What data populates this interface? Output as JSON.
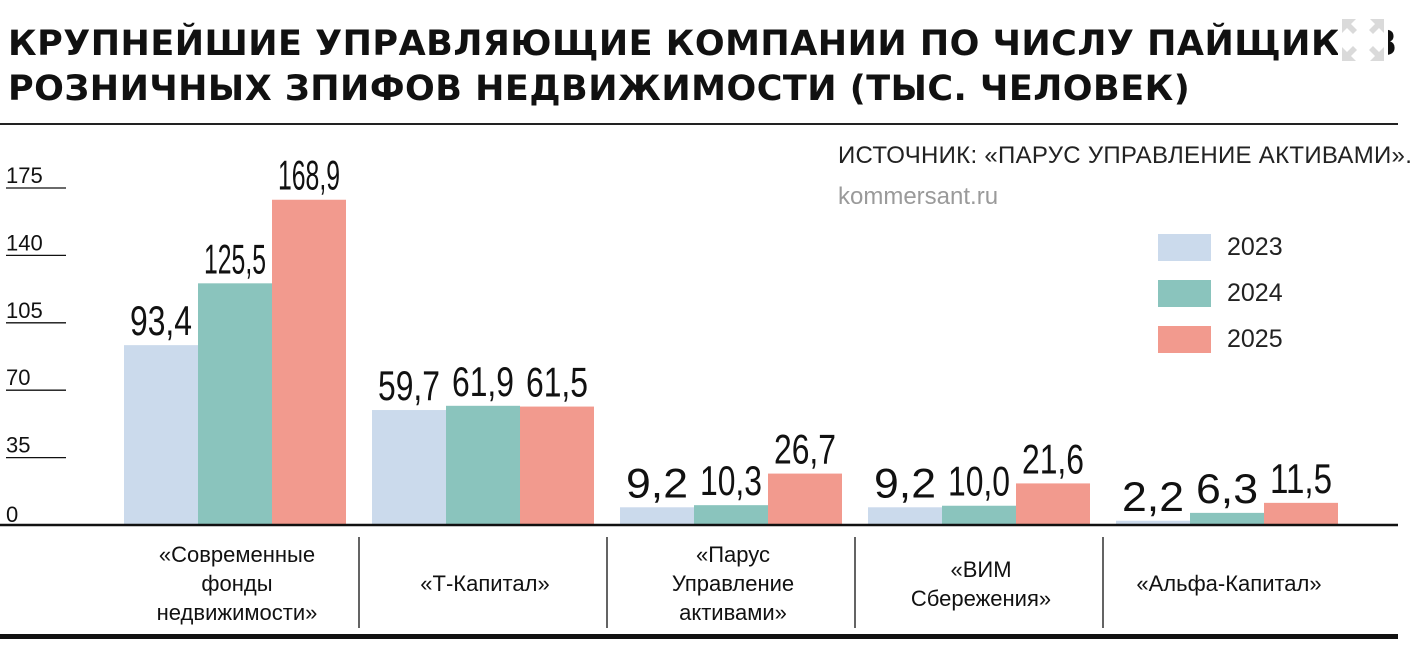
{
  "header": {
    "title_line1": "КРУПНЕЙШИЕ УПРАВЛЯЮЩИЕ КОМПАНИИ ПО ЧИСЛУ ПАЙЩИКОВ",
    "title_line2": "РОЗНИЧНЫХ ЗПИФОВ НЕДВИЖИМОСТИ (ТЫС. ЧЕЛОВЕК)",
    "expand_icon": "expand-arrows-icon"
  },
  "source": "ИСТОЧНИК: «ПАРУС УПРАВЛЕНИЕ АКТИВАМИ».",
  "site": "kommersant.ru",
  "colors": {
    "s2023": "#cbdaec",
    "s2024": "#8ac4bd",
    "s2025": "#f29a8e",
    "text": "#111111",
    "source_gray": "#9a9a9a"
  },
  "chart_data": {
    "type": "bar",
    "title": "КРУПНЕЙШИЕ УПРАВЛЯЮЩИЕ КОМПАНИИ ПО ЧИСЛУ ПАЙЩИКОВ РОЗНИЧНЫХ ЗПИФОВ НЕДВИЖИМОСТИ (ТЫС. ЧЕЛОВЕК)",
    "categories": [
      "«Современные\nфонды\nнедвижимости»",
      "«Т-Капитал»",
      "«Парус\nУправление\nактивами»",
      "«ВИМ\nСбережения»",
      "«Альфа-Капитал»"
    ],
    "series": [
      {
        "name": "2023",
        "values": [
          93.4,
          59.7,
          9.2,
          9.2,
          2.2
        ],
        "labels": [
          "93,4",
          "59,7",
          "9,2",
          "9,2",
          "2,2"
        ]
      },
      {
        "name": "2024",
        "values": [
          125.5,
          61.9,
          10.3,
          10.0,
          6.3
        ],
        "labels": [
          "125,5",
          "61,9",
          "10,3",
          "10,0",
          "6,3"
        ]
      },
      {
        "name": "2025",
        "values": [
          168.9,
          61.5,
          26.7,
          21.6,
          11.5
        ],
        "labels": [
          "168,9",
          "61,5",
          "26,7",
          "21,6",
          "11,5"
        ]
      }
    ],
    "yticks": [
      0,
      35,
      70,
      105,
      140,
      175
    ],
    "ytick_labels": [
      "0",
      "35",
      "70",
      "105",
      "140",
      "175"
    ],
    "ylim": [
      0,
      175
    ],
    "grid": false,
    "legend": "top-right"
  }
}
